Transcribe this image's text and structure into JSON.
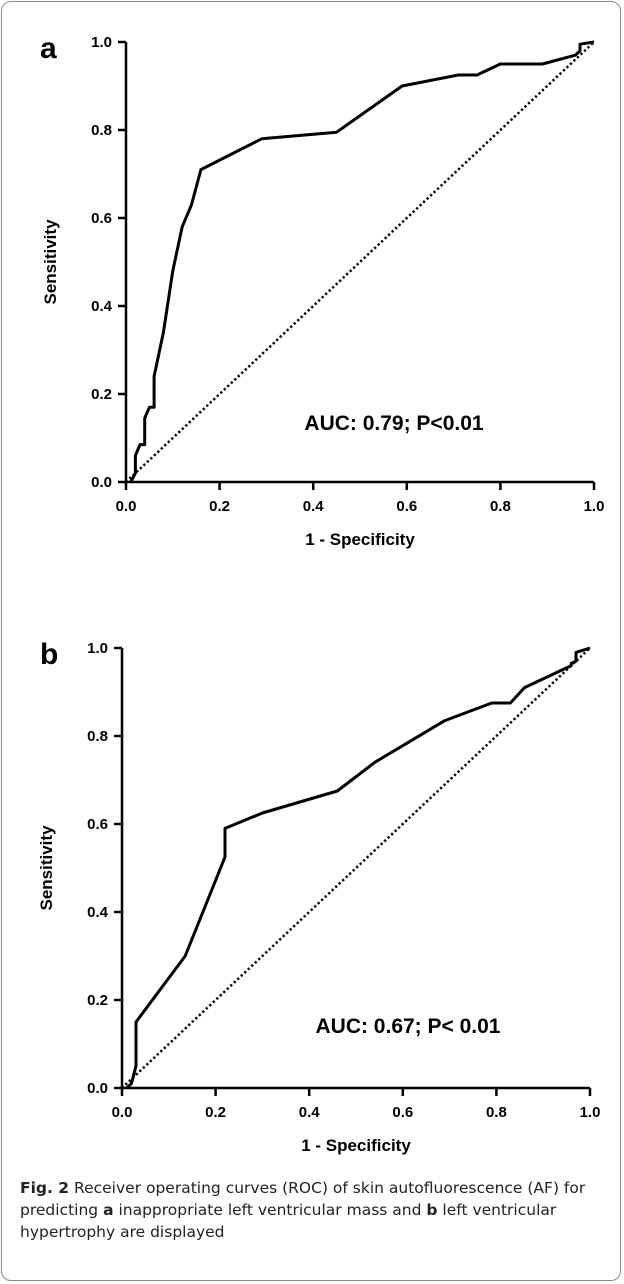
{
  "chart_data": [
    {
      "type": "line",
      "panel_label": "a",
      "xlabel": "1 - Specificity",
      "ylabel": "Sensitivity",
      "xlim": [
        0,
        1
      ],
      "ylim": [
        0,
        1
      ],
      "xticks": [
        "0.0",
        "0.2",
        "0.4",
        "0.6",
        "0.8",
        "1.0"
      ],
      "yticks": [
        "0.0",
        "0.2",
        "0.4",
        "0.6",
        "0.8",
        "1.0"
      ],
      "annotation": "AUC: 0.79; P<0.01",
      "reference_line": {
        "x": [
          0,
          1
        ],
        "y": [
          0,
          1
        ],
        "style": "dotted"
      },
      "series": [
        {
          "x": [
            0.01,
            0.02,
            0.02,
            0.03,
            0.04,
            0.04,
            0.05,
            0.06,
            0.06,
            0.08,
            0.1,
            0.12,
            0.14,
            0.16,
            0.29,
            0.45,
            0.59,
            0.71,
            0.75,
            0.8,
            0.89,
            0.96,
            0.97,
            0.97,
            1.0
          ],
          "y": [
            0.0,
            0.02,
            0.06,
            0.085,
            0.085,
            0.145,
            0.17,
            0.17,
            0.24,
            0.34,
            0.48,
            0.58,
            0.63,
            0.71,
            0.78,
            0.795,
            0.9,
            0.925,
            0.925,
            0.95,
            0.95,
            0.97,
            0.98,
            0.995,
            1.0
          ]
        }
      ]
    },
    {
      "type": "line",
      "panel_label": "b",
      "xlabel": "1 - Specificity",
      "ylabel": "Sensitivity",
      "xlim": [
        0,
        1
      ],
      "ylim": [
        0,
        1
      ],
      "xticks": [
        "0.0",
        "0.2",
        "0.4",
        "0.6",
        "0.8",
        "1.0"
      ],
      "yticks": [
        "0.0",
        "0.2",
        "0.4",
        "0.6",
        "0.8",
        "1.0"
      ],
      "annotation": "AUC: 0.67; P< 0.01",
      "reference_line": {
        "x": [
          0,
          1
        ],
        "y": [
          0,
          1
        ],
        "style": "dotted"
      },
      "series": [
        {
          "x": [
            0.01,
            0.02,
            0.03,
            0.03,
            0.135,
            0.22,
            0.22,
            0.3,
            0.46,
            0.54,
            0.69,
            0.79,
            0.83,
            0.86,
            0.96,
            0.96,
            0.97,
            0.97,
            1.0
          ],
          "y": [
            0.0,
            0.01,
            0.05,
            0.15,
            0.3,
            0.525,
            0.59,
            0.625,
            0.675,
            0.74,
            0.835,
            0.875,
            0.875,
            0.91,
            0.96,
            0.965,
            0.97,
            0.99,
            1.0
          ]
        }
      ]
    }
  ],
  "caption": {
    "fig_label": "Fig. 2",
    "part1": "  Receiver operating curves (ROC) of skin autofluorescence (AF) for predicting ",
    "a": "a",
    "part2": " inappropriate left ventricular mass and ",
    "b": "b",
    "part3": " left ventricular hypertrophy are displayed"
  }
}
